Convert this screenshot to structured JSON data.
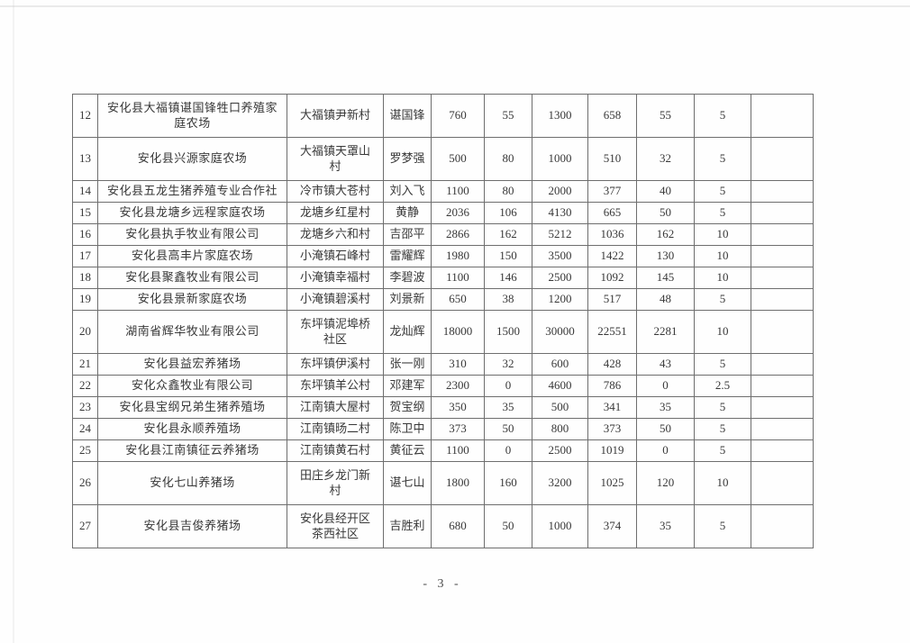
{
  "page": {
    "footer_page_number": "- 3 -"
  },
  "table": {
    "cell_names": [
      "cell-row-number",
      "cell-farm-name",
      "cell-location",
      "cell-contact-name",
      "cell-value-1",
      "cell-value-2",
      "cell-value-3",
      "cell-value-4",
      "cell-value-5",
      "cell-value-6",
      "cell-remarks"
    ],
    "rows": [
      {
        "tall": true,
        "cells": [
          "12",
          "安化县大福镇谌国锋牲口养殖家庭农场",
          "大福镇尹新村",
          "谌国锋",
          "760",
          "55",
          "1300",
          "658",
          "55",
          "5",
          ""
        ]
      },
      {
        "tall": true,
        "cells": [
          "13",
          "安化县兴源家庭农场",
          "大福镇天罩山村",
          "罗梦强",
          "500",
          "80",
          "1000",
          "510",
          "32",
          "5",
          ""
        ]
      },
      {
        "tall": false,
        "cells": [
          "14",
          "安化县五龙生猪养殖专业合作社",
          "冷市镇大苍村",
          "刘入飞",
          "1100",
          "80",
          "2000",
          "377",
          "40",
          "5",
          ""
        ]
      },
      {
        "tall": false,
        "cells": [
          "15",
          "安化县龙塘乡远程家庭农场",
          "龙塘乡红星村",
          "黄静",
          "2036",
          "106",
          "4130",
          "665",
          "50",
          "5",
          ""
        ]
      },
      {
        "tall": false,
        "cells": [
          "16",
          "安化县执手牧业有限公司",
          "龙塘乡六和村",
          "吉邵平",
          "2866",
          "162",
          "5212",
          "1036",
          "162",
          "10",
          ""
        ]
      },
      {
        "tall": false,
        "cells": [
          "17",
          "安化县高丰片家庭农场",
          "小淹镇石峰村",
          "雷耀辉",
          "1980",
          "150",
          "3500",
          "1422",
          "130",
          "10",
          ""
        ]
      },
      {
        "tall": false,
        "cells": [
          "18",
          "安化县聚鑫牧业有限公司",
          "小淹镇幸福村",
          "李碧波",
          "1100",
          "146",
          "2500",
          "1092",
          "145",
          "10",
          ""
        ]
      },
      {
        "tall": false,
        "cells": [
          "19",
          "安化县景新家庭农场",
          "小淹镇碧溪村",
          "刘景新",
          "650",
          "38",
          "1200",
          "517",
          "48",
          "5",
          ""
        ]
      },
      {
        "tall": true,
        "cells": [
          "20",
          "湖南省辉华牧业有限公司",
          "东坪镇泥埠桥社区",
          "龙灿辉",
          "18000",
          "1500",
          "30000",
          "22551",
          "2281",
          "10",
          ""
        ]
      },
      {
        "tall": false,
        "cells": [
          "21",
          "安化县益宏养猪场",
          "东坪镇伊溪村",
          "张一刚",
          "310",
          "32",
          "600",
          "428",
          "43",
          "5",
          ""
        ]
      },
      {
        "tall": false,
        "cells": [
          "22",
          "安化众鑫牧业有限公司",
          "东坪镇羊公村",
          "邓建军",
          "2300",
          "0",
          "4600",
          "786",
          "0",
          "2.5",
          ""
        ]
      },
      {
        "tall": false,
        "cells": [
          "23",
          "安化县宝纲兄弟生猪养殖场",
          "江南镇大屋村",
          "贺宝纲",
          "350",
          "35",
          "500",
          "341",
          "35",
          "5",
          ""
        ]
      },
      {
        "tall": false,
        "cells": [
          "24",
          "安化县永顺养殖场",
          "江南镇旸二村",
          "陈卫中",
          "373",
          "50",
          "800",
          "373",
          "50",
          "5",
          ""
        ]
      },
      {
        "tall": false,
        "cells": [
          "25",
          "安化县江南镇征云养猪场",
          "江南镇黄石村",
          "黄征云",
          "1100",
          "0",
          "2500",
          "1019",
          "0",
          "5",
          ""
        ]
      },
      {
        "tall": true,
        "cells": [
          "26",
          "安化七山养猪场",
          "田庄乡龙门新村",
          "谌七山",
          "1800",
          "160",
          "3200",
          "1025",
          "120",
          "10",
          ""
        ]
      },
      {
        "tall": true,
        "cells": [
          "27",
          "安化县吉俊养猪场",
          "安化县经开区茶西社区",
          "吉胜利",
          "680",
          "50",
          "1000",
          "374",
          "35",
          "5",
          ""
        ]
      }
    ]
  }
}
